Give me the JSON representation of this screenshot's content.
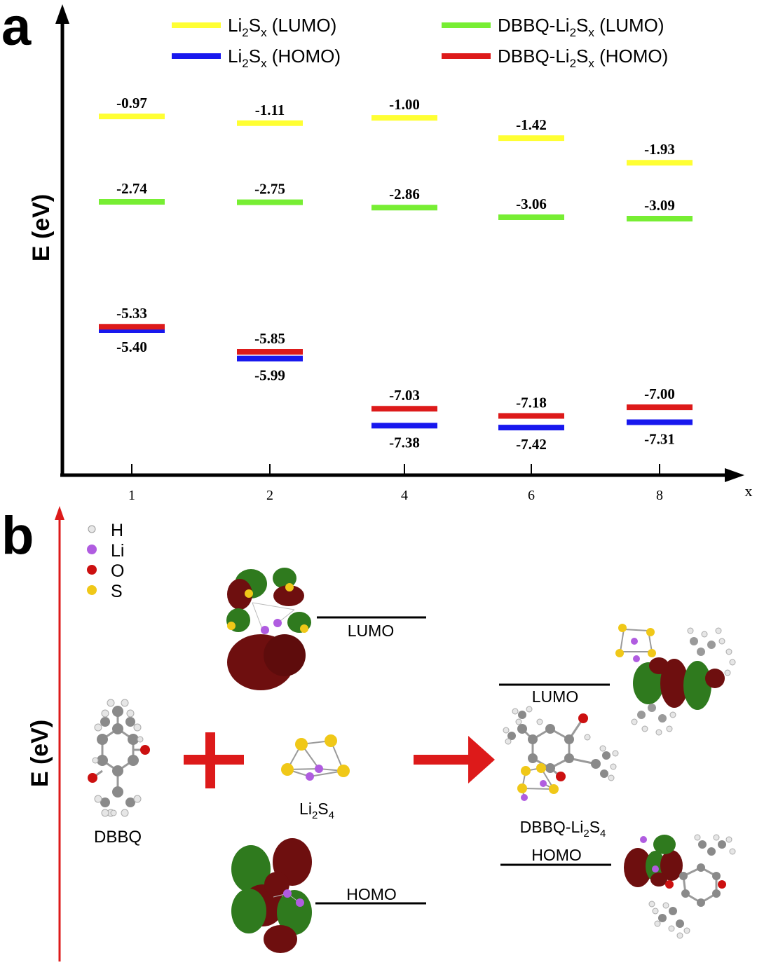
{
  "panel_a_label": "a",
  "panel_b_label": "b",
  "chart_data": {
    "type": "bar",
    "xlabel": "x",
    "ylabel": "E (eV)",
    "categories": [
      "1",
      "2",
      "4",
      "6",
      "8"
    ],
    "legend_position": "top",
    "grid": false,
    "ylim": [
      -8.0,
      -0.3
    ],
    "series": [
      {
        "key": "li2sx_lumo",
        "legend": [
          "Li",
          "2",
          "S",
          "x",
          " (LUMO)"
        ],
        "color": "#ffff33",
        "values": [
          -0.97,
          -1.11,
          -1.0,
          -1.42,
          -1.93
        ],
        "labels": [
          "-0.97",
          "-1.11",
          "-1.00",
          "-1.42",
          "-1.93"
        ]
      },
      {
        "key": "dbbq_lumo",
        "legend": [
          "DBBQ-Li",
          "2",
          "S",
          "x",
          " (LUMO)"
        ],
        "color": "#77ee33",
        "values": [
          -2.74,
          -2.75,
          -2.86,
          -3.06,
          -3.09
        ],
        "labels": [
          "-2.74",
          "-2.75",
          "-2.86",
          "-3.06",
          "-3.09"
        ]
      },
      {
        "key": "li2sx_homo",
        "legend": [
          "Li",
          "2",
          "S",
          "x",
          " (HOMO)"
        ],
        "color": "#1818ee",
        "values": [
          -5.4,
          -5.99,
          -7.38,
          -7.42,
          -7.31
        ],
        "labels": [
          "-5.40",
          "-5.99",
          "-7.38",
          "-7.42",
          "-7.31"
        ]
      },
      {
        "key": "dbbq_homo",
        "legend": [
          "DBBQ-Li",
          "2",
          "S",
          "x",
          " (HOMO)"
        ],
        "color": "#dd1a1a",
        "values": [
          -5.33,
          -5.85,
          -7.03,
          -7.18,
          -7.0
        ],
        "labels": [
          "-5.33",
          "-5.85",
          "-7.03",
          "-7.18",
          "-7.00"
        ]
      }
    ]
  },
  "panel_b": {
    "ylabel": "E (eV)",
    "atom_legend": [
      {
        "symbol": "H",
        "color": "#e8e8e8"
      },
      {
        "symbol": "Li",
        "color": "#b05ce0"
      },
      {
        "symbol": "O",
        "color": "#cc1010"
      },
      {
        "symbol": "S",
        "color": "#f0c818"
      }
    ],
    "dbbq_label": "DBBQ",
    "li2s4_label": {
      "base": "Li",
      "sub1": "2",
      "mid": "S",
      "sub2": "4"
    },
    "complex_label": {
      "base": "DBBQ-Li",
      "sub1": "2",
      "mid": "S",
      "sub2": "4"
    },
    "left_lumo": "LUMO",
    "left_homo": "HOMO",
    "right_lumo": "LUMO",
    "right_homo": "HOMO",
    "arrow_color": "#dd1a1a",
    "orbital_colors": {
      "positive": "#6e0f0f",
      "negative": "#2f7a1e"
    }
  }
}
